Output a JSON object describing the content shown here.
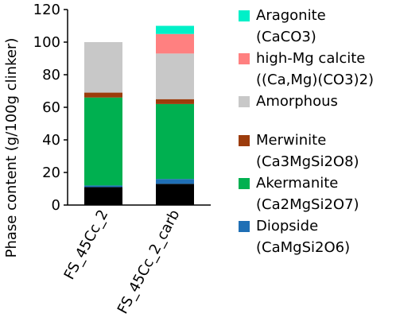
{
  "chart_data": {
    "type": "bar",
    "stacked": true,
    "ylabel": "Phase content (g/100g clinker)",
    "ylim": [
      0,
      120
    ],
    "yticks": [
      0,
      20,
      40,
      60,
      80,
      100,
      120
    ],
    "categories": [
      "FS_45Cc_2",
      "FS_45Cc_2_carb"
    ],
    "series": [
      {
        "name": "",
        "color": "#000000",
        "values": [
          11,
          13
        ]
      },
      {
        "name": "Diopside\n(CaMgSi2O6)",
        "color": "#1f6fb5",
        "values": [
          1,
          3
        ]
      },
      {
        "name": "Akermanite\n(Ca2MgSi2O7)",
        "color": "#00b050",
        "values": [
          54,
          46
        ]
      },
      {
        "name": "Merwinite\n(Ca3MgSi2O8)",
        "color": "#9c3c0c",
        "values": [
          3,
          3
        ]
      },
      {
        "name": "Amorphous",
        "color": "#c8c8c8",
        "values": [
          31,
          28
        ]
      },
      {
        "name": "high-Mg calcite\n((Ca,Mg)(CO3)2)",
        "color": "#ff8080",
        "values": [
          0,
          12
        ]
      },
      {
        "name": "Aragonite\n(CaCO3)",
        "color": "#00f0c8",
        "values": [
          0,
          5
        ]
      }
    ]
  },
  "legend": {
    "items": [
      {
        "name": "Aragonite",
        "formula": "(CaCO3)",
        "color": "#00f0c8"
      },
      {
        "name": "high-Mg calcite",
        "formula": "((Ca,Mg)(CO3)2)",
        "color": "#ff8080"
      },
      {
        "name": "Amorphous",
        "formula": "",
        "color": "#c8c8c8"
      },
      {
        "name": "Merwinite",
        "formula": "(Ca3MgSi2O8)",
        "color": "#9c3c0c"
      },
      {
        "name": "Akermanite",
        "formula": "(Ca2MgSi2O7)",
        "color": "#00b050"
      },
      {
        "name": "Diopside",
        "formula": "(CaMgSi2O6)",
        "color": "#1f6fb5"
      }
    ]
  }
}
